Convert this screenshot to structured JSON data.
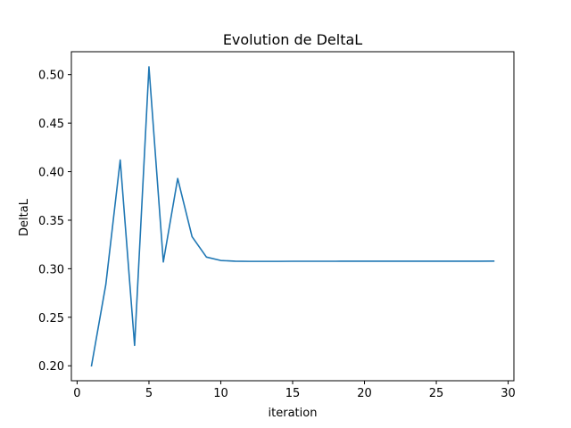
{
  "chart_data": {
    "type": "line",
    "title": "Evolution de DeltaL",
    "xlabel": "iteration",
    "ylabel": "DeltaL",
    "xlim": [
      -0.4,
      30.4
    ],
    "ylim": [
      0.1846,
      0.5236
    ],
    "x_ticks": [
      0,
      5,
      10,
      15,
      20,
      25,
      30
    ],
    "y_ticks": [
      0.2,
      0.25,
      0.3,
      0.35,
      0.4,
      0.45,
      0.5
    ],
    "x_tick_labels": [
      "0",
      "5",
      "10",
      "15",
      "20",
      "25",
      "30"
    ],
    "y_tick_labels": [
      "0.20",
      "0.25",
      "0.30",
      "0.35",
      "0.40",
      "0.45",
      "0.50"
    ],
    "grid": false,
    "colors": {
      "series": "#1f77b4"
    },
    "series": [
      {
        "x": [
          1,
          2,
          3,
          4,
          5,
          6,
          7,
          8,
          9,
          10,
          11,
          12,
          13,
          14,
          15,
          16,
          17,
          18,
          19,
          20,
          21,
          22,
          23,
          24,
          25,
          26,
          27,
          28,
          29
        ],
        "values": [
          0.2,
          0.284,
          0.412,
          0.221,
          0.508,
          0.307,
          0.393,
          0.333,
          0.312,
          0.3085,
          0.3078,
          0.3076,
          0.3076,
          0.3076,
          0.3077,
          0.3077,
          0.3077,
          0.3077,
          0.3078,
          0.3078,
          0.3078,
          0.3078,
          0.3078,
          0.3078,
          0.3078,
          0.3078,
          0.3078,
          0.3078,
          0.3079
        ]
      }
    ]
  }
}
